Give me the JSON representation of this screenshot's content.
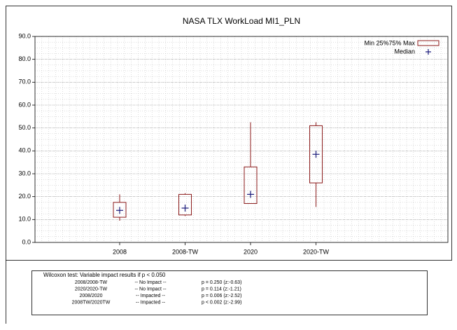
{
  "chart_data": {
    "type": "box",
    "title": "NASA TLX WorkLoad MI1_PLN",
    "categories": [
      "2008",
      "2008-TW",
      "2020",
      "2020-TW"
    ],
    "series": [
      {
        "name": "2008",
        "min": 9.5,
        "q1": 11,
        "median": 14,
        "q3": 17.5,
        "max": 21
      },
      {
        "name": "2008-TW",
        "min": 11.5,
        "q1": 12,
        "median": 15,
        "q3": 21,
        "max": 21.5
      },
      {
        "name": "2020",
        "min": 17,
        "q1": 17,
        "median": 21,
        "q3": 33,
        "max": 52.5
      },
      {
        "name": "2020-TW",
        "min": 15.5,
        "q1": 26,
        "median": 38.5,
        "q3": 51,
        "max": 52.5
      }
    ],
    "legend": [
      "Min 25%75% Max",
      "Median"
    ],
    "box_color": "#8b1a1a",
    "median_color": "#1a1a7a",
    "ylim": [
      0,
      90
    ],
    "yticks": [
      {
        "value": 0,
        "label": "0.0"
      },
      {
        "value": 10,
        "label": "10.0"
      },
      {
        "value": 20,
        "label": "20.0"
      },
      {
        "value": 30,
        "label": "30.0"
      },
      {
        "value": 40,
        "label": "40.0"
      },
      {
        "value": 50,
        "label": "50.0"
      },
      {
        "value": 60,
        "label": "60.0"
      },
      {
        "value": 70,
        "label": "70.0"
      },
      {
        "value": 80,
        "label": "80.0"
      },
      {
        "value": 90,
        "label": "90.0"
      }
    ],
    "grid": true
  },
  "wilcoxon": {
    "title": "Wilcoxon test: Variable impact results if p < 0.050",
    "rows": [
      [
        "2008/2008-TW",
        "-- No Impact --",
        "p = 0.250 (z:-0.63)"
      ],
      [
        "2020/2020-TW",
        "-- No Impact --",
        "p = 0.114 (z:-1.21)"
      ],
      [
        "2008/2020",
        "-- Impacted --",
        "p = 0.006 (z:-2.52)"
      ],
      [
        "2008TW/2020TW",
        "-- Impacted --",
        "p < 0.002  (z:-2.99)"
      ]
    ]
  }
}
